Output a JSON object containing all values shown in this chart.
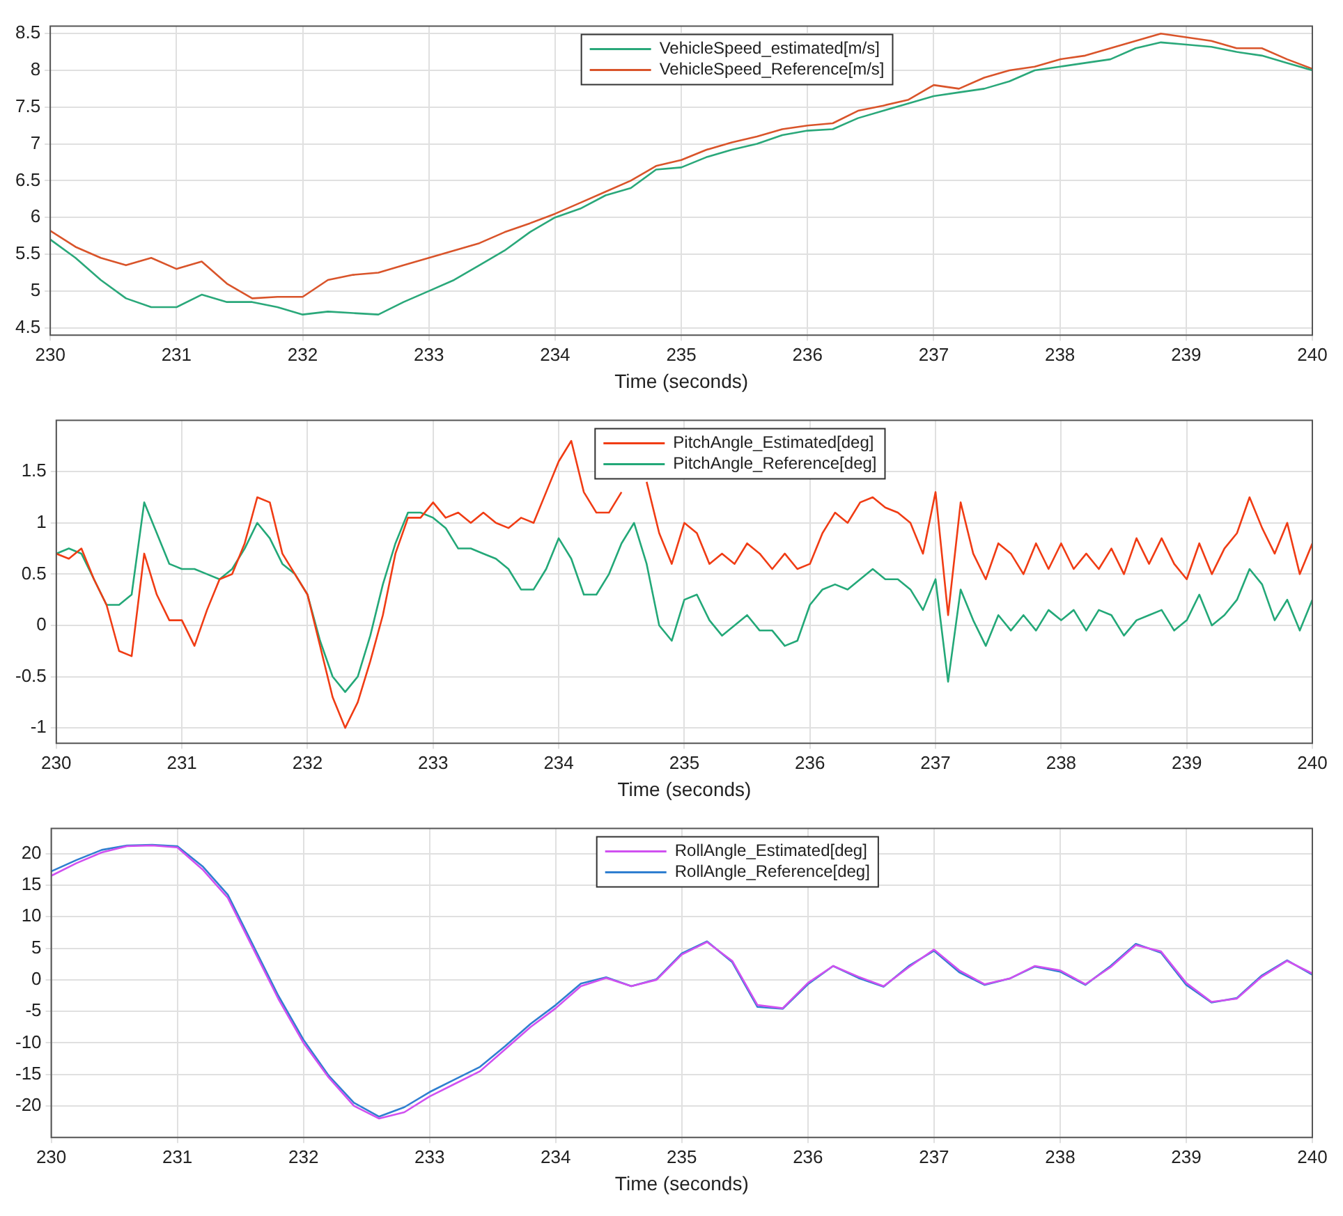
{
  "chart_data": [
    {
      "type": "line",
      "xlabel": "Time (seconds)",
      "xlim": [
        230,
        240
      ],
      "xticks": [
        230,
        231,
        232,
        233,
        234,
        235,
        236,
        237,
        238,
        239,
        240
      ],
      "ylim": [
        4.4,
        8.6
      ],
      "yticks": [
        4.5,
        5,
        5.5,
        6,
        6.5,
        7,
        7.5,
        8,
        8.5
      ],
      "grid": true,
      "legend": "top",
      "line_style": "solid",
      "x": [
        230,
        230.2,
        230.4,
        230.6,
        230.8,
        231,
        231.2,
        231.4,
        231.6,
        231.8,
        232,
        232.2,
        232.4,
        232.6,
        232.8,
        233,
        233.2,
        233.4,
        233.6,
        233.8,
        234,
        234.2,
        234.4,
        234.6,
        234.8,
        235,
        235.2,
        235.4,
        235.6,
        235.8,
        236,
        236.2,
        236.4,
        236.6,
        236.8,
        237,
        237.2,
        237.4,
        237.6,
        237.8,
        238,
        238.2,
        238.4,
        238.6,
        238.8,
        239,
        239.2,
        239.4,
        239.6,
        239.8,
        240
      ],
      "series": [
        {
          "name": "VehicleSpeed_estimated[m/s]",
          "color": "#2aa87a",
          "values": [
            5.7,
            5.45,
            5.15,
            4.9,
            4.78,
            4.78,
            4.95,
            4.85,
            4.85,
            4.78,
            4.68,
            4.72,
            4.7,
            4.68,
            4.85,
            5.0,
            5.15,
            5.35,
            5.55,
            5.8,
            6.0,
            6.12,
            6.3,
            6.4,
            6.65,
            6.68,
            6.82,
            6.92,
            7.0,
            7.12,
            7.18,
            7.2,
            7.35,
            7.45,
            7.55,
            7.65,
            7.7,
            7.75,
            7.85,
            8.0,
            8.05,
            8.1,
            8.15,
            8.3,
            8.38,
            8.35,
            8.32,
            8.25,
            8.2,
            8.1,
            8.0
          ]
        },
        {
          "name": "VehicleSpeed_Reference[m/s]",
          "color": "#d9542a",
          "values": [
            5.82,
            5.6,
            5.45,
            5.35,
            5.45,
            5.3,
            5.4,
            5.1,
            4.9,
            4.92,
            4.92,
            5.15,
            5.22,
            5.25,
            5.35,
            5.45,
            5.55,
            5.65,
            5.8,
            5.92,
            6.05,
            6.2,
            6.35,
            6.5,
            6.7,
            6.78,
            6.92,
            7.02,
            7.1,
            7.2,
            7.25,
            7.28,
            7.45,
            7.52,
            7.6,
            7.8,
            7.75,
            7.9,
            8.0,
            8.05,
            8.15,
            8.2,
            8.3,
            8.4,
            8.5,
            8.45,
            8.4,
            8.3,
            8.3,
            8.15,
            8.02
          ]
        }
      ]
    },
    {
      "type": "line",
      "xlabel": "Time (seconds)",
      "xlim": [
        230,
        240
      ],
      "xticks": [
        230,
        231,
        232,
        233,
        234,
        235,
        236,
        237,
        238,
        239,
        240
      ],
      "ylim": [
        -1.15,
        2
      ],
      "yticks": [
        -1,
        -0.5,
        0,
        0.5,
        1,
        1.5
      ],
      "grid": true,
      "legend": "top",
      "line_style": "solid",
      "x": [
        230,
        230.1,
        230.2,
        230.3,
        230.4,
        230.5,
        230.6,
        230.7,
        230.8,
        230.9,
        231,
        231.1,
        231.2,
        231.3,
        231.4,
        231.5,
        231.6,
        231.7,
        231.8,
        231.9,
        232,
        232.1,
        232.2,
        232.3,
        232.4,
        232.5,
        232.6,
        232.7,
        232.8,
        232.9,
        233,
        233.1,
        233.2,
        233.3,
        233.4,
        233.5,
        233.6,
        233.7,
        233.8,
        233.9,
        234,
        234.1,
        234.2,
        234.3,
        234.4,
        234.5,
        234.6,
        234.7,
        234.8,
        234.9,
        235,
        235.1,
        235.2,
        235.3,
        235.4,
        235.5,
        235.6,
        235.7,
        235.8,
        235.9,
        236,
        236.1,
        236.2,
        236.3,
        236.4,
        236.5,
        236.6,
        236.7,
        236.8,
        236.9,
        237,
        237.1,
        237.2,
        237.3,
        237.4,
        237.5,
        237.6,
        237.7,
        237.8,
        237.9,
        238,
        238.1,
        238.2,
        238.3,
        238.4,
        238.5,
        238.6,
        238.7,
        238.8,
        238.9,
        239,
        239.1,
        239.2,
        239.3,
        239.4,
        239.5,
        239.6,
        239.7,
        239.8,
        239.9,
        240
      ],
      "series": [
        {
          "name": "PitchAngle_Estimated[deg]",
          "color": "#f03c14",
          "values": [
            0.7,
            0.65,
            0.75,
            0.45,
            0.2,
            -0.25,
            -0.3,
            0.7,
            0.3,
            0.05,
            0.05,
            -0.2,
            0.15,
            0.45,
            0.5,
            0.8,
            1.25,
            1.2,
            0.7,
            0.5,
            0.3,
            -0.2,
            -0.7,
            -1.0,
            -0.75,
            -0.35,
            0.1,
            0.7,
            1.05,
            1.05,
            1.2,
            1.05,
            1.1,
            1.0,
            1.1,
            1.0,
            0.95,
            1.05,
            1.0,
            1.3,
            1.6,
            1.8,
            1.3,
            1.1,
            1.1,
            1.3,
            null,
            1.4,
            0.9,
            0.6,
            1.0,
            0.9,
            0.6,
            0.7,
            0.6,
            0.8,
            0.7,
            0.55,
            0.7,
            0.55,
            0.6,
            0.9,
            1.1,
            1.0,
            1.2,
            1.25,
            1.15,
            1.1,
            1.0,
            0.7,
            1.3,
            0.1,
            1.2,
            0.7,
            0.45,
            0.8,
            0.7,
            0.5,
            0.8,
            0.55,
            0.8,
            0.55,
            0.7,
            0.55,
            0.75,
            0.5,
            0.85,
            0.6,
            0.85,
            0.6,
            0.45,
            0.8,
            0.5,
            0.75,
            0.9,
            1.25,
            0.95,
            0.7,
            1.0,
            0.5,
            0.8
          ]
        },
        {
          "name": "PitchAngle_Reference[deg]",
          "color": "#23a878",
          "values": [
            0.7,
            0.75,
            0.7,
            0.45,
            0.2,
            0.2,
            0.3,
            1.2,
            0.9,
            0.6,
            0.55,
            0.55,
            0.5,
            0.45,
            0.55,
            0.75,
            1.0,
            0.85,
            0.6,
            0.5,
            0.3,
            -0.15,
            -0.5,
            -0.65,
            -0.5,
            -0.1,
            0.4,
            0.8,
            1.1,
            1.1,
            1.05,
            0.95,
            0.75,
            0.75,
            0.7,
            0.65,
            0.55,
            0.35,
            0.35,
            0.55,
            0.85,
            0.65,
            0.3,
            0.3,
            0.5,
            0.8,
            1.0,
            0.6,
            0.0,
            -0.15,
            0.25,
            0.3,
            0.05,
            -0.1,
            0.0,
            0.1,
            -0.05,
            -0.05,
            -0.2,
            -0.15,
            0.2,
            0.35,
            0.4,
            0.35,
            0.45,
            0.55,
            0.45,
            0.45,
            0.35,
            0.15,
            0.45,
            -0.55,
            0.35,
            0.05,
            -0.2,
            0.1,
            -0.05,
            0.1,
            -0.05,
            0.15,
            0.05,
            0.15,
            -0.05,
            0.15,
            0.1,
            -0.1,
            0.05,
            0.1,
            0.15,
            -0.05,
            0.05,
            0.3,
            0.0,
            0.1,
            0.25,
            0.55,
            0.4,
            0.05,
            0.25,
            -0.05,
            0.25
          ]
        }
      ]
    },
    {
      "type": "line",
      "xlabel": "Time (seconds)",
      "xlim": [
        230,
        240
      ],
      "xticks": [
        230,
        231,
        232,
        233,
        234,
        235,
        236,
        237,
        238,
        239,
        240
      ],
      "ylim": [
        -25,
        24
      ],
      "yticks": [
        -20,
        -15,
        -10,
        -5,
        0,
        5,
        10,
        15,
        20
      ],
      "grid": true,
      "legend": "top",
      "line_style": "solid",
      "x": [
        230,
        230.2,
        230.4,
        230.6,
        230.8,
        231,
        231.2,
        231.4,
        231.6,
        231.8,
        232,
        232.2,
        232.4,
        232.6,
        232.8,
        233,
        233.2,
        233.4,
        233.6,
        233.8,
        234,
        234.2,
        234.4,
        234.6,
        234.8,
        235,
        235.2,
        235.4,
        235.6,
        235.8,
        236,
        236.2,
        236.4,
        236.6,
        236.8,
        237,
        237.2,
        237.4,
        237.6,
        237.8,
        238,
        238.2,
        238.4,
        238.6,
        238.8,
        239,
        239.2,
        239.4,
        239.6,
        239.8,
        240
      ],
      "series": [
        {
          "name": "RollAngle_Estimated[deg]",
          "color": "#d050f0",
          "values": [
            16.5,
            18.5,
            20.2,
            21.2,
            21.3,
            21.0,
            17.5,
            13,
            5,
            -3,
            -10,
            -15.5,
            -20,
            -22,
            -21,
            -18.5,
            -16.5,
            -14.5,
            -11,
            -7.5,
            -4.5,
            -1,
            0.3,
            -1,
            0,
            4,
            6,
            3,
            -4,
            -4.5,
            -0.5,
            2.2,
            0.5,
            -1,
            2,
            4.8,
            1.5,
            -0.7,
            0.2,
            2.2,
            1.5,
            -0.7,
            2,
            5.5,
            4.5,
            -0.5,
            -3.5,
            -3,
            0.5,
            3,
            1
          ]
        },
        {
          "name": "RollAngle_Reference[deg]",
          "color": "#2f7fd0",
          "values": [
            17.2,
            19,
            20.6,
            21.3,
            21.4,
            21.2,
            18,
            13.5,
            5.5,
            -2.5,
            -9.5,
            -15.2,
            -19.5,
            -21.7,
            -20.2,
            -17.8,
            -15.8,
            -13.8,
            -10.5,
            -7,
            -4,
            -0.6,
            0.4,
            -1,
            0.1,
            4.2,
            6.1,
            2.8,
            -4.3,
            -4.6,
            -0.7,
            2.2,
            0.3,
            -1.1,
            2.2,
            4.6,
            1.2,
            -0.8,
            0.2,
            2.1,
            1.3,
            -0.8,
            2.2,
            5.7,
            4.3,
            -0.8,
            -3.6,
            -2.9,
            0.7,
            3.1,
            0.8
          ]
        }
      ]
    }
  ]
}
